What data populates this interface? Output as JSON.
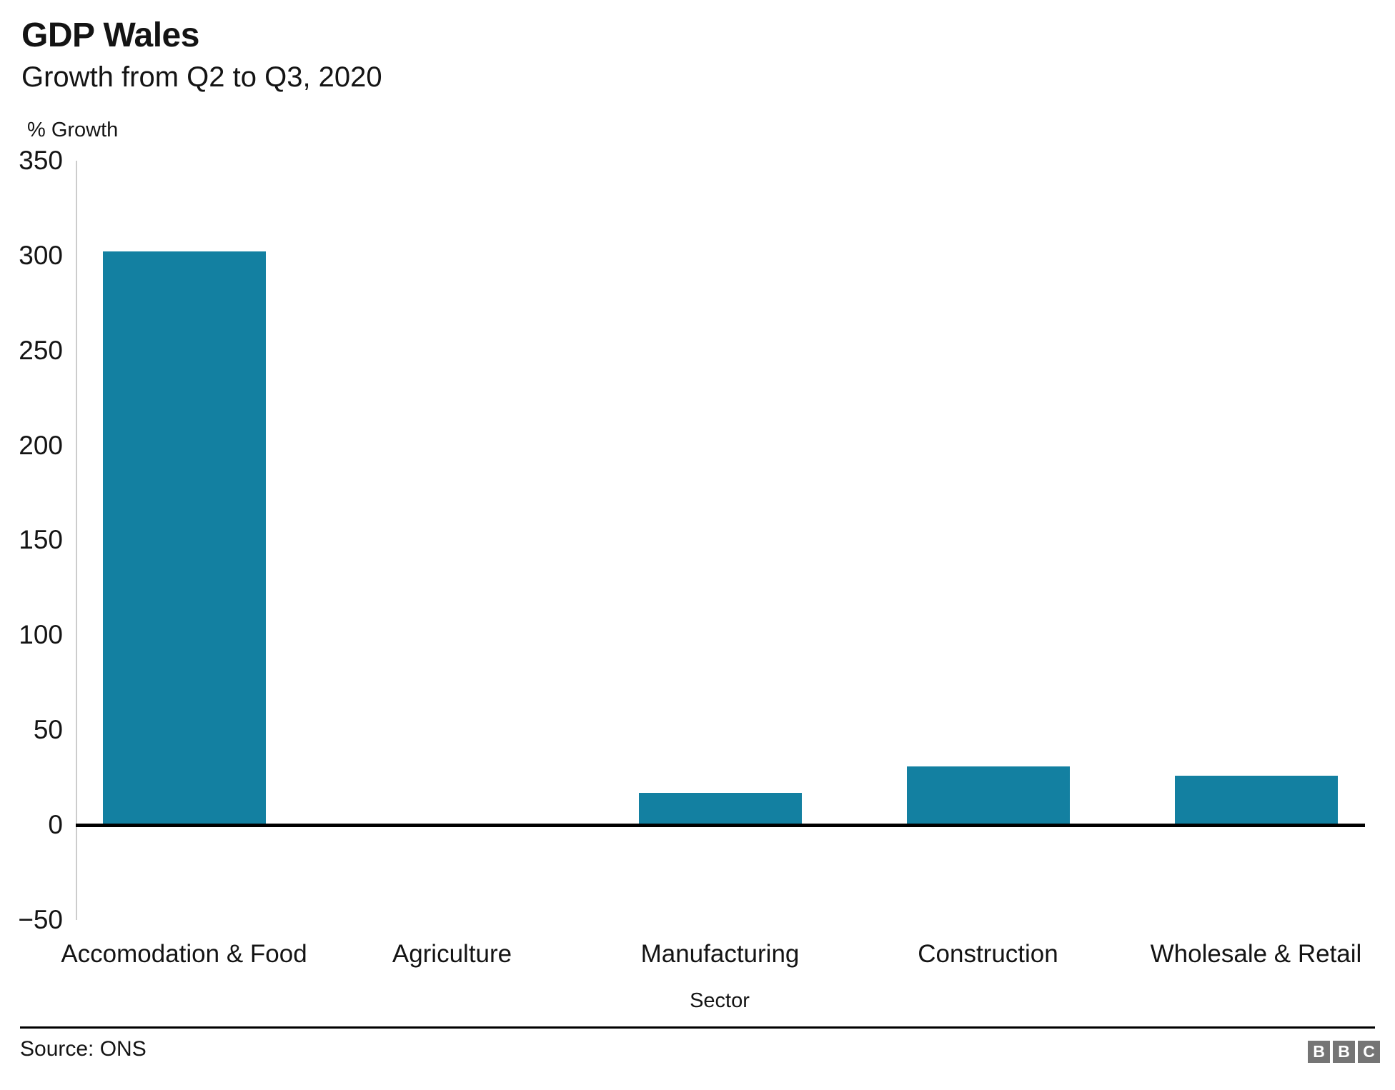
{
  "header": {
    "title": "GDP Wales",
    "subtitle": "Growth from Q2 to Q3, 2020"
  },
  "footer": {
    "source": "Source: ONS",
    "logo_blocks": [
      "B",
      "B",
      "C"
    ]
  },
  "colors": {
    "bar_positive": "#1380A1",
    "bar_negative": "#7A1517",
    "axis_line": "#cccccc",
    "zero_line": "#000000",
    "logo_gray": "#757575"
  },
  "chart_data": {
    "type": "bar",
    "title": "GDP Wales",
    "subtitle": "Growth from Q2 to Q3, 2020",
    "xlabel": "Sector",
    "ylabel": "% Growth",
    "categories": [
      "Accomodation & Food",
      "Agriculture",
      "Manufacturing",
      "Construction",
      "Wholesale & Retail"
    ],
    "values": [
      302,
      -1,
      17,
      31,
      26
    ],
    "bar_colors": [
      "#1380A1",
      "#7A1517",
      "#1380A1",
      "#1380A1",
      "#1380A1"
    ],
    "yticks": [
      350,
      300,
      250,
      200,
      150,
      100,
      50,
      0,
      -50
    ],
    "ytick_labels": [
      "350",
      "300",
      "250",
      "200",
      "150",
      "100",
      "50",
      "0",
      "−50"
    ],
    "ylim": [
      -50,
      350
    ],
    "grid": false,
    "legend": "none"
  }
}
